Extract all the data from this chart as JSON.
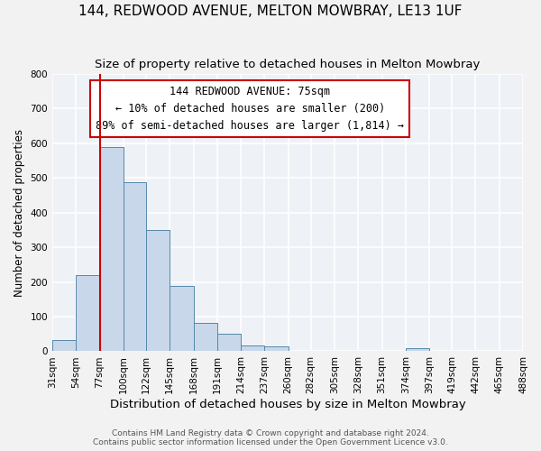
{
  "title": "144, REDWOOD AVENUE, MELTON MOWBRAY, LE13 1UF",
  "subtitle": "Size of property relative to detached houses in Melton Mowbray",
  "xlabel": "Distribution of detached houses by size in Melton Mowbray",
  "ylabel": "Number of detached properties",
  "bin_edges": [
    31,
    54,
    77,
    100,
    122,
    145,
    168,
    191,
    214,
    237,
    260,
    282,
    305,
    328,
    351,
    374,
    397,
    419,
    442,
    465,
    488
  ],
  "bin_labels": [
    "31sqm",
    "54sqm",
    "77sqm",
    "100sqm",
    "122sqm",
    "145sqm",
    "168sqm",
    "191sqm",
    "214sqm",
    "237sqm",
    "260sqm",
    "282sqm",
    "305sqm",
    "328sqm",
    "351sqm",
    "374sqm",
    "397sqm",
    "419sqm",
    "442sqm",
    "465sqm",
    "488sqm"
  ],
  "counts": [
    33,
    220,
    590,
    488,
    350,
    188,
    82,
    50,
    18,
    14,
    0,
    0,
    0,
    0,
    0,
    8,
    0,
    0,
    0,
    0
  ],
  "bar_color": "#c8d8ea",
  "bar_edge_color": "#5588aa",
  "property_line_x": 77,
  "property_line_color": "#cc0000",
  "annotation_box_text": "144 REDWOOD AVENUE: 75sqm\n← 10% of detached houses are smaller (200)\n89% of semi-detached houses are larger (1,814) →",
  "annotation_fontsize": 8.5,
  "ylim": [
    0,
    800
  ],
  "yticks": [
    0,
    100,
    200,
    300,
    400,
    500,
    600,
    700,
    800
  ],
  "background_color": "#eef2f7",
  "grid_color": "#ffffff",
  "footer_line1": "Contains HM Land Registry data © Crown copyright and database right 2024.",
  "footer_line2": "Contains public sector information licensed under the Open Government Licence v3.0.",
  "title_fontsize": 11,
  "subtitle_fontsize": 9.5,
  "xlabel_fontsize": 9.5,
  "ylabel_fontsize": 8.5,
  "tick_fontsize": 7.5,
  "footer_fontsize": 6.5
}
